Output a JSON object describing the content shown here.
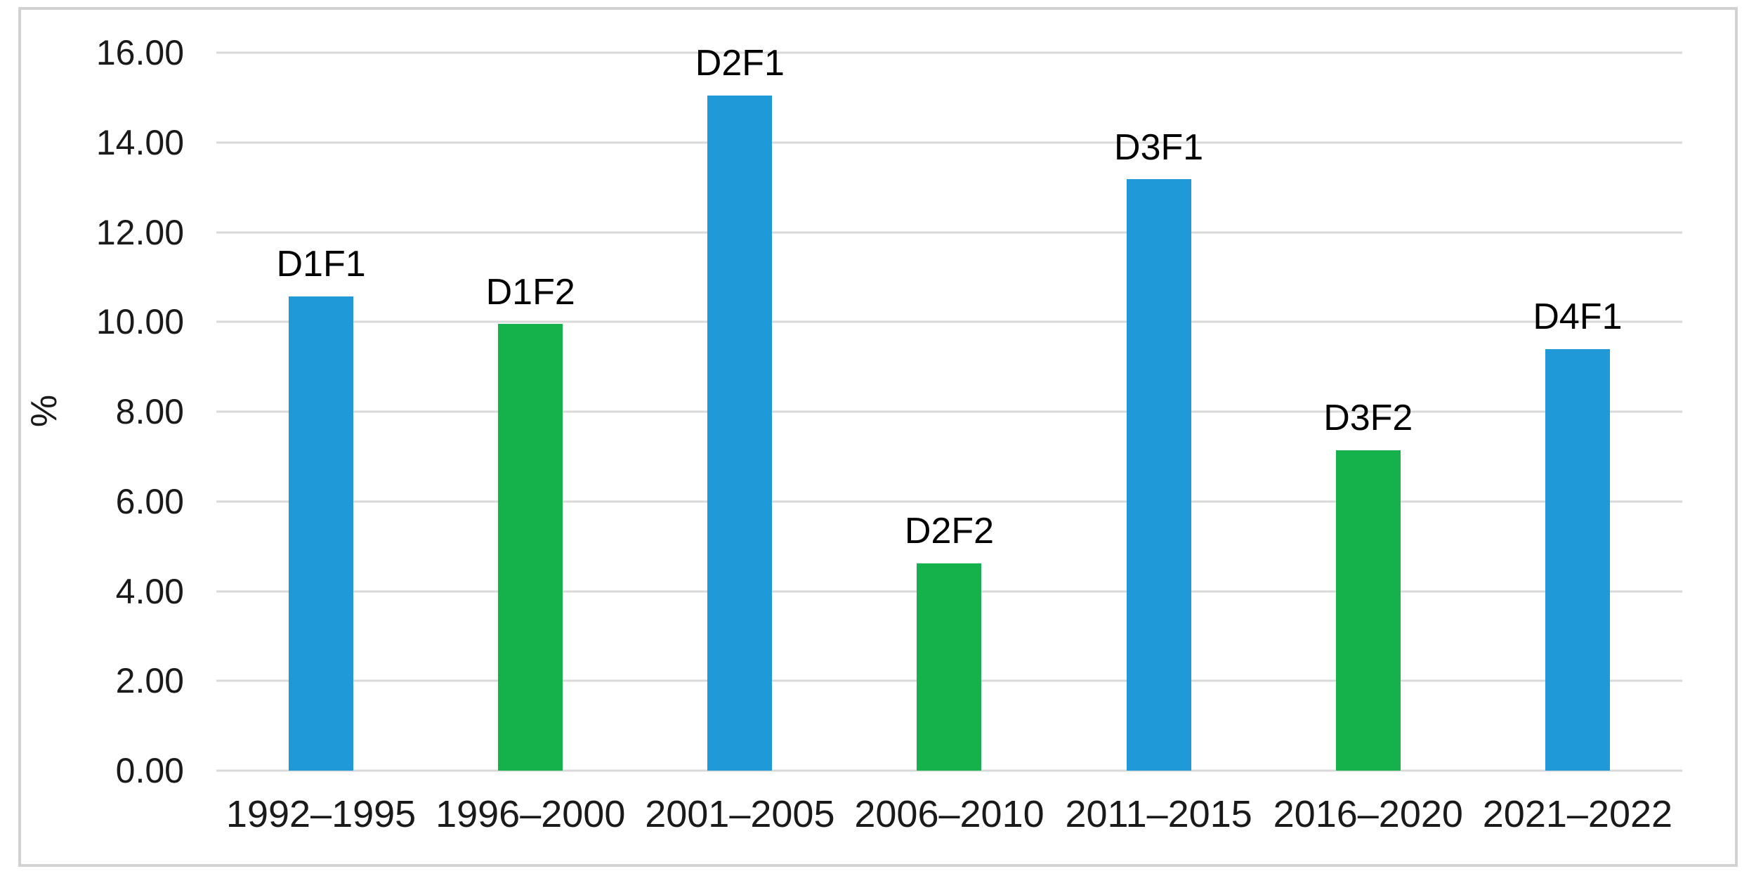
{
  "chart_data": {
    "type": "bar",
    "title": "",
    "xlabel": "",
    "ylabel": "%",
    "ylim": [
      0,
      16
    ],
    "ytick_step": 2,
    "yticks": [
      "0.00",
      "2.00",
      "4.00",
      "6.00",
      "8.00",
      "10.00",
      "12.00",
      "14.00",
      "16.00"
    ],
    "grid": true,
    "legend": false,
    "categories": [
      "1992–1995",
      "1996–2000",
      "2001–2005",
      "2006–2010",
      "2011–2015",
      "2016–2020",
      "2021–2022"
    ],
    "bars": [
      {
        "label": "D1F1",
        "value": 10.57,
        "color": "#2099d8"
      },
      {
        "label": "D1F2",
        "value": 9.95,
        "color": "#15b24c"
      },
      {
        "label": "D2F1",
        "value": 15.05,
        "color": "#2099d8"
      },
      {
        "label": "D2F2",
        "value": 4.62,
        "color": "#15b24c"
      },
      {
        "label": "D3F1",
        "value": 13.18,
        "color": "#2099d8"
      },
      {
        "label": "D3F2",
        "value": 7.14,
        "color": "#15b24c"
      },
      {
        "label": "D4F1",
        "value": 9.4,
        "color": "#2099d8"
      }
    ],
    "colors": {
      "series_blue": "#2099d8",
      "series_green": "#15b24c",
      "gridline": "#d9d9d9",
      "axis_line": "#d9d9d9",
      "frame_border": "#d2d2d2",
      "text": "#1a1a1a",
      "background": "#ffffff"
    }
  }
}
